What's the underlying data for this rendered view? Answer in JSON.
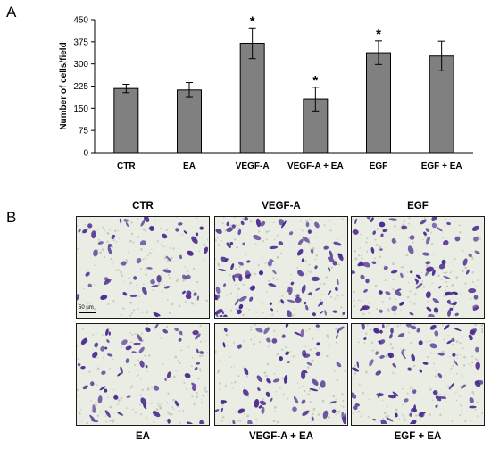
{
  "panel_a_label": "A",
  "panel_b_label": "B",
  "chart_data": {
    "type": "bar",
    "categories": [
      "CTR",
      "EA",
      "VEGF-A",
      "VEGF-A + EA",
      "EGF",
      "EGF + EA"
    ],
    "values": [
      217,
      212,
      370,
      181,
      338,
      327
    ],
    "errors": [
      14,
      25,
      52,
      40,
      40,
      50
    ],
    "significant": [
      false,
      false,
      true,
      true,
      true,
      false
    ],
    "significance_marker": "*",
    "ylabel": "Number of cells/field",
    "xlabel": "",
    "title": "",
    "ylim": [
      0,
      450
    ],
    "yticks": [
      0,
      75,
      150,
      225,
      300,
      375,
      450
    ],
    "bar_color": "#808080",
    "grid": false,
    "legend": "none"
  },
  "micrographs": {
    "labels": [
      "CTR",
      "VEGF-A",
      "EGF",
      "EA",
      "VEGF-A + EA",
      "EGF + EA"
    ],
    "scale_bar_label": "50 µm",
    "stain_color": "#4b2a8f",
    "background_color": "#e9ede3"
  }
}
